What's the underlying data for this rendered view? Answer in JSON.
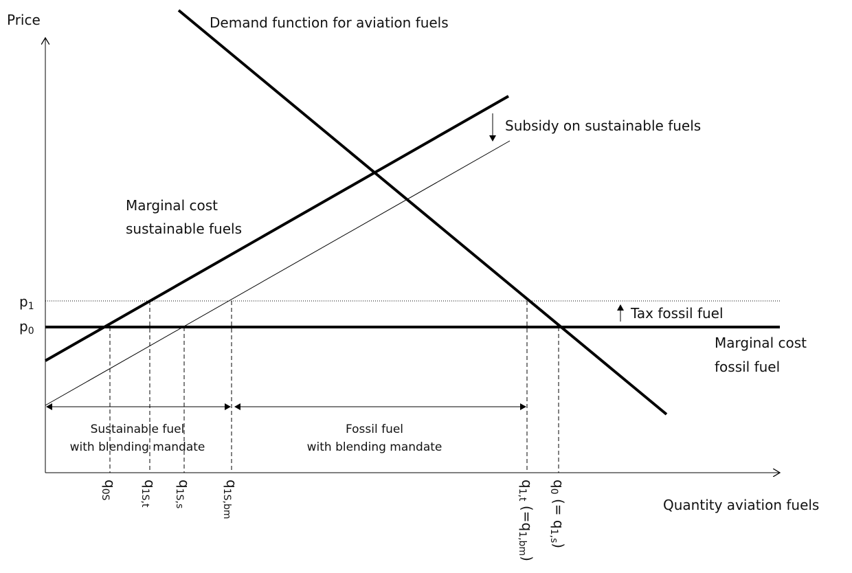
{
  "axes": {
    "y_label": "Price",
    "x_label": "Quantity aviation fuels"
  },
  "curves": {
    "demand": "Demand function for aviation fuels",
    "subsidy": "Subsidy on sustainable fuels",
    "mc_sustainable": [
      "Marginal cost",
      "sustainable fuels"
    ],
    "tax": "Tax fossil fuel",
    "mc_fossil": [
      "Marginal cost",
      "fossil fuel"
    ]
  },
  "price_labels": [
    [
      {
        "text": "p"
      },
      {
        "text": "1",
        "sub": true
      }
    ],
    [
      {
        "text": "p"
      },
      {
        "text": "0",
        "sub": true
      }
    ]
  ],
  "ranges": {
    "sustainable": [
      "Sustainable fuel",
      "with blending mandate"
    ],
    "fossil": [
      "Fossil fuel",
      "with blending mandate"
    ]
  },
  "quantity_labels": [
    [
      {
        "text": "q"
      },
      {
        "text": "0S",
        "sub": true
      }
    ],
    [
      {
        "text": "q"
      },
      {
        "text": "1S,t",
        "sub": true
      }
    ],
    [
      {
        "text": "q"
      },
      {
        "text": "1S,s",
        "sub": true
      }
    ],
    [
      {
        "text": "q"
      },
      {
        "text": "1S,bm",
        "sub": true
      }
    ],
    [
      {
        "text": "q"
      },
      {
        "text": "1,t",
        "sub": true
      },
      {
        "text": " (=q"
      },
      {
        "text": "1,bm",
        "sub": true
      },
      {
        "text": ")"
      }
    ],
    [
      {
        "text": "q"
      },
      {
        "text": "0",
        "sub": true
      },
      {
        "text": " (= q"
      },
      {
        "text": "1,s",
        "sub": true
      },
      {
        "text": ")"
      }
    ]
  ]
}
